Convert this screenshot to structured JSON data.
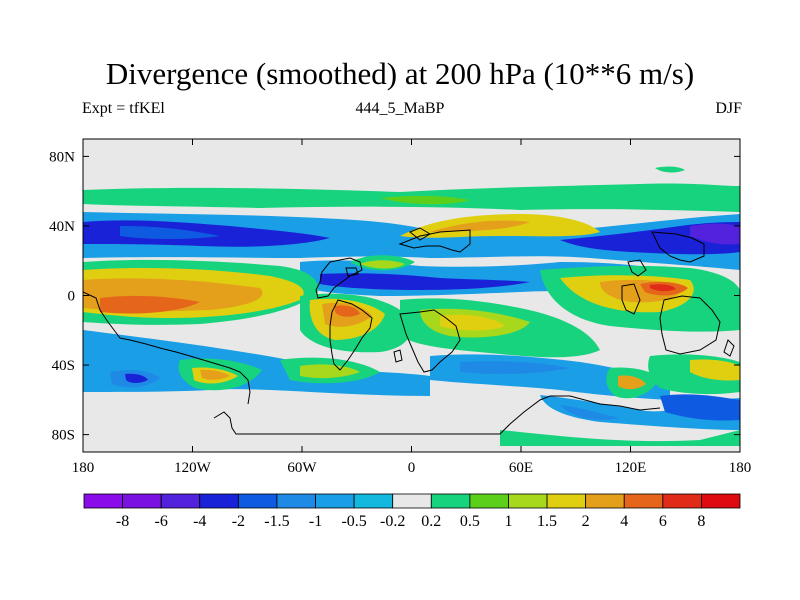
{
  "title": "Divergence (smoothed) at 200 hPa (10**6 m/s)",
  "left_label": "Expt = tfKEl",
  "center_label": "444_5_MaBP",
  "right_label": "DJF",
  "lat_ticks": [
    {
      "label": "80N",
      "lat": 80
    },
    {
      "label": "40N",
      "lat": 40
    },
    {
      "label": "0",
      "lat": 0
    },
    {
      "label": "40S",
      "lat": -40
    },
    {
      "label": "80S",
      "lat": -80
    }
  ],
  "lon_ticks": [
    {
      "label": "180",
      "lon": -180
    },
    {
      "label": "120W",
      "lon": -120
    },
    {
      "label": "60W",
      "lon": -60
    },
    {
      "label": "0",
      "lon": 0
    },
    {
      "label": "60E",
      "lon": 60
    },
    {
      "label": "120E",
      "lon": 120
    },
    {
      "label": "180",
      "lon": 180
    }
  ],
  "lon_range": [
    -180,
    180
  ],
  "lat_range": [
    -90,
    90
  ],
  "colorbar": {
    "labels": [
      "-8",
      "-6",
      "-4",
      "-2",
      "-1.5",
      "-1",
      "-0.5",
      "-0.2",
      "0.2",
      "0.5",
      "1",
      "1.5",
      "2",
      "4",
      "6",
      "8"
    ],
    "colors": [
      "#8a0ce8",
      "#7a12e2",
      "#5322dd",
      "#1a22d8",
      "#0e5ae0",
      "#1f8ae6",
      "#1a9ee6",
      "#12b8de",
      "#e8e8e8",
      "#18d37d",
      "#5ccf1a",
      "#a8d81b",
      "#e0cf10",
      "#e5a01b",
      "#e5661a",
      "#e02b18",
      "#df0a10"
    ]
  },
  "ocean_color": "#e8e8e8"
}
